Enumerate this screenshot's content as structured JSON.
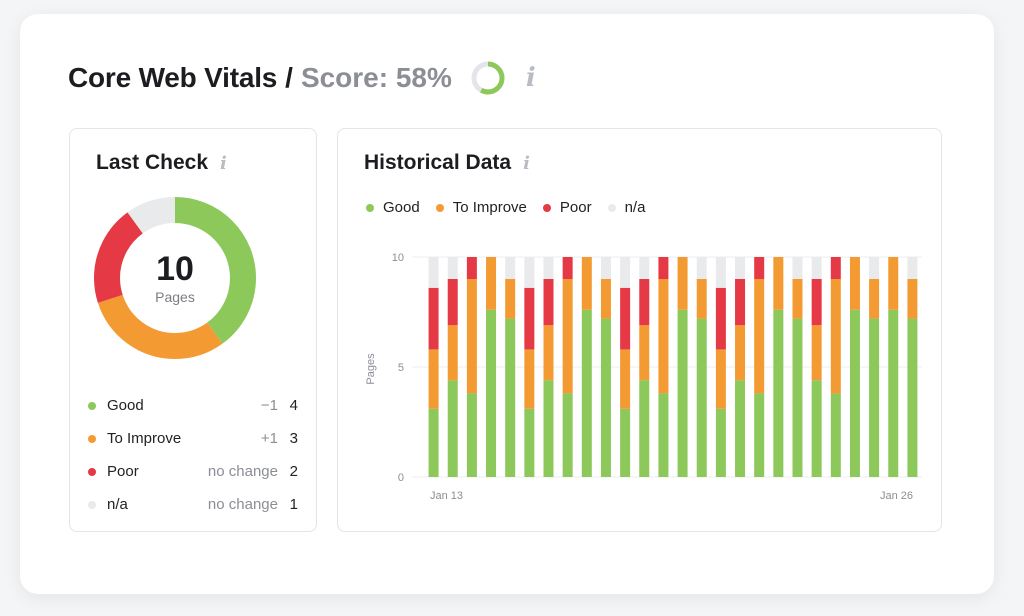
{
  "header": {
    "title": "Core Web Vitals",
    "separator": "/",
    "score_text": "Score: 58%",
    "score_percent": 58,
    "info_glyph": "i"
  },
  "colors": {
    "good": "#8dc85a",
    "to_improve": "#f39a33",
    "poor": "#e53945",
    "na": "#e9eaec",
    "text": "#1d1d21",
    "muted": "#8b8e95"
  },
  "last_check": {
    "title": "Last Check",
    "info_glyph": "i",
    "total": "10",
    "total_label": "Pages",
    "items": [
      {
        "name": "Good",
        "change": "−1",
        "count": "4",
        "color": "#8dc85a",
        "value": 4
      },
      {
        "name": "To Improve",
        "change": "+1",
        "count": "3",
        "color": "#f39a33",
        "value": 3
      },
      {
        "name": "Poor",
        "change": "no change",
        "count": "2",
        "color": "#e53945",
        "value": 2
      },
      {
        "name": "n/a",
        "change": "no change",
        "count": "1",
        "color": "#e9eaec",
        "value": 1
      }
    ]
  },
  "historical": {
    "title": "Historical Data",
    "info_glyph": "i",
    "legend": [
      {
        "name": "Good",
        "color": "#8dc85a"
      },
      {
        "name": "To Improve",
        "color": "#f39a33"
      },
      {
        "name": "Poor",
        "color": "#e53945"
      },
      {
        "name": "n/a",
        "color": "#e9eaec"
      }
    ]
  },
  "chart_data": {
    "type": "bar",
    "stacked": true,
    "title": "Historical Data",
    "ylabel": "Pages",
    "ylim": [
      0,
      10
    ],
    "yticks": [
      "0",
      "5",
      "10"
    ],
    "x_tick_labels": {
      "first": "Jan 13",
      "last": "Jan 26"
    },
    "grid": true,
    "legend_position": "top-left",
    "series": [
      {
        "name": "Good",
        "color": "#8dc85a",
        "values": [
          3.1,
          4.4,
          3.8,
          7.6,
          7.2,
          3.1,
          4.4,
          3.8,
          7.6,
          7.2,
          3.1,
          4.4,
          3.8,
          7.6,
          7.2,
          3.1,
          4.4,
          3.8,
          7.6,
          7.2,
          4.4,
          3.8,
          7.6,
          7.2,
          7.6,
          7.2
        ]
      },
      {
        "name": "To Improve",
        "color": "#f39a33",
        "values": [
          2.7,
          2.5,
          5.2,
          2.4,
          1.8,
          2.7,
          2.5,
          5.2,
          2.4,
          1.8,
          2.7,
          2.5,
          5.2,
          2.4,
          1.8,
          2.7,
          2.5,
          5.2,
          2.4,
          1.8,
          2.5,
          5.2,
          2.4,
          1.8,
          2.4,
          1.8
        ]
      },
      {
        "name": "Poor",
        "color": "#e53945",
        "values": [
          2.8,
          2.1,
          1.0,
          0,
          0,
          2.8,
          2.1,
          1.0,
          0,
          0,
          2.8,
          2.1,
          1.0,
          0,
          0,
          2.8,
          2.1,
          1.0,
          0,
          0,
          2.1,
          1.0,
          0,
          0,
          0,
          0
        ]
      },
      {
        "name": "n/a",
        "color": "#e9eaec",
        "values": [
          1.4,
          1.0,
          0,
          0,
          1.0,
          1.4,
          1.0,
          0,
          0,
          1.0,
          1.4,
          1.0,
          0,
          0,
          1.0,
          1.4,
          1.0,
          0,
          0,
          1.0,
          1.0,
          0,
          0,
          1.0,
          0,
          1.0
        ]
      }
    ]
  }
}
